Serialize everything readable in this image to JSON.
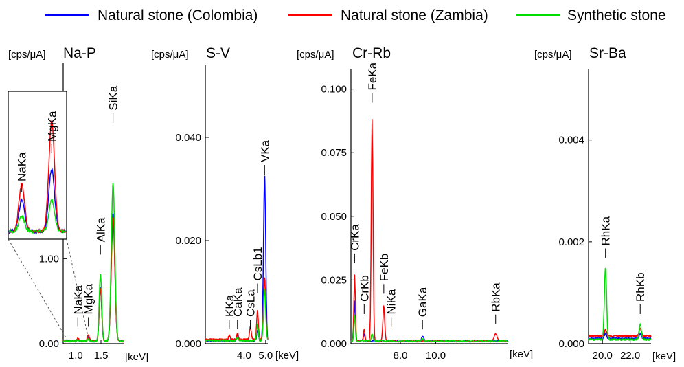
{
  "legend": [
    {
      "label": "Natural stone (Colombia)",
      "color": "#0000ff"
    },
    {
      "label": "Natural stone (Zambia)",
      "color": "#ff0000"
    },
    {
      "label": "Synthetic stone",
      "color": "#00dd00"
    }
  ],
  "chart_data": [
    {
      "type": "line",
      "title": "Na-P",
      "ylabel": "[cps/μA]",
      "xlabel": "[keV]",
      "xlim": [
        0.75,
        1.95
      ],
      "ylim": [
        0,
        3.3
      ],
      "xticks": [
        {
          "v": 1.0,
          "label": "1.0"
        },
        {
          "v": 1.5,
          "label": "1.5"
        }
      ],
      "yticks": [
        {
          "v": 0.0,
          "label": "0.00"
        },
        {
          "v": 1.0,
          "label": "1.00"
        }
      ],
      "peak_labels": [
        {
          "label": "NaKa",
          "x": 1.04,
          "y": 0.15
        },
        {
          "label": "MgKa",
          "x": 1.25,
          "y": 0.15
        },
        {
          "label": "AlKa",
          "x": 1.49,
          "y": 1.0
        },
        {
          "label": "SiKa",
          "x": 1.74,
          "y": 2.55
        }
      ],
      "series": [
        {
          "color": "#0000ff",
          "peaks": [
            [
              1.04,
              0.02,
              0.02
            ],
            [
              1.25,
              0.04,
              0.02
            ],
            [
              1.49,
              0.62,
              0.025
            ],
            [
              1.74,
              1.5,
              0.035
            ]
          ],
          "base": 0.03
        },
        {
          "color": "#ff0000",
          "peaks": [
            [
              1.04,
              0.03,
              0.02
            ],
            [
              1.25,
              0.07,
              0.02
            ],
            [
              1.49,
              0.62,
              0.025
            ],
            [
              1.74,
              1.45,
              0.035
            ]
          ],
          "base": 0.03
        },
        {
          "color": "#00dd00",
          "peaks": [
            [
              1.04,
              0.01,
              0.02
            ],
            [
              1.25,
              0.02,
              0.02
            ],
            [
              1.49,
              0.78,
              0.025
            ],
            [
              1.74,
              1.85,
              0.035
            ]
          ],
          "base": 0.03
        }
      ],
      "inset": {
        "xlim": [
          0.95,
          1.35
        ],
        "ylim": [
          0,
          0.09
        ],
        "labels": [
          {
            "label": "NaKa",
            "x": 1.04
          },
          {
            "label": "MgKa",
            "x": 1.25
          }
        ]
      }
    },
    {
      "type": "line",
      "title": "S-V",
      "ylabel": "[cps/μA]",
      "xlabel": "[keV]",
      "xlim": [
        2.2,
        5.1
      ],
      "ylim": [
        0,
        0.054
      ],
      "xticks": [
        {
          "v": 4.0,
          "label": "4.0"
        },
        {
          "v": 5.0,
          "label": "5.0"
        }
      ],
      "yticks": [
        {
          "v": 0.0,
          "label": "0.000"
        },
        {
          "v": 0.02,
          "label": "0.020"
        },
        {
          "v": 0.04,
          "label": "0.040"
        }
      ],
      "peak_labels": [
        {
          "label": "KKa",
          "x": 3.31,
          "y": 0.002
        },
        {
          "label": "CaKa",
          "x": 3.69,
          "y": 0.002
        },
        {
          "label": "CsLa",
          "x": 4.29,
          "y": 0.002
        },
        {
          "label": "CsLb1",
          "x": 4.62,
          "y": 0.009
        },
        {
          "label": "VKa",
          "x": 4.95,
          "y": 0.032
        }
      ],
      "series": [
        {
          "color": "#0000ff",
          "peaks": [
            [
              4.95,
              0.032,
              0.05
            ],
            [
              4.62,
              0.002,
              0.04
            ],
            [
              3.69,
              0.001,
              0.04
            ]
          ],
          "base": 0.0006
        },
        {
          "color": "#ff0000",
          "peaks": [
            [
              4.95,
              0.012,
              0.05
            ],
            [
              4.62,
              0.0055,
              0.04
            ],
            [
              4.29,
              0.0025,
              0.04
            ],
            [
              3.69,
              0.0012,
              0.04
            ],
            [
              3.31,
              0.0008,
              0.04
            ]
          ],
          "base": 0.0008
        },
        {
          "color": "#00dd00",
          "peaks": [
            [
              4.95,
              0.01,
              0.05
            ],
            [
              4.62,
              0.003,
              0.04
            ],
            [
              3.69,
              0.0006,
              0.04
            ]
          ],
          "base": 0.0006
        }
      ]
    },
    {
      "type": "line",
      "title": "Cr-Rb",
      "ylabel": "[cps/μA]",
      "xlabel": "[keV]",
      "xlim": [
        5.2,
        14.1
      ],
      "ylim": [
        0,
        0.108
      ],
      "xticks": [
        {
          "v": 8.0,
          "label": "8.0"
        },
        {
          "v": 10.0,
          "label": "10.0"
        }
      ],
      "yticks": [
        {
          "v": 0.0,
          "label": "0.000"
        },
        {
          "v": 0.025,
          "label": "0.025"
        },
        {
          "v": 0.05,
          "label": "0.050"
        },
        {
          "v": 0.075,
          "label": "0.075"
        },
        {
          "v": 0.1,
          "label": "0.100"
        }
      ],
      "peak_labels": [
        {
          "label": "CrKa",
          "x": 5.41,
          "y": 0.03
        },
        {
          "label": "CrKb",
          "x": 5.95,
          "y": 0.01
        },
        {
          "label": "FeKa",
          "x": 6.4,
          "y": 0.093
        },
        {
          "label": "FeKb",
          "x": 7.06,
          "y": 0.018
        },
        {
          "label": "NiKa",
          "x": 7.48,
          "y": 0.005
        },
        {
          "label": "GaKa",
          "x": 9.25,
          "y": 0.004
        },
        {
          "label": "RbKa",
          "x": 13.39,
          "y": 0.006
        }
      ],
      "series": [
        {
          "color": "#0000ff",
          "peaks": [
            [
              5.41,
              0.016,
              0.04
            ],
            [
              5.95,
              0.003,
              0.04
            ],
            [
              6.4,
              0.0,
              0.05
            ],
            [
              9.25,
              0.002,
              0.06
            ]
          ],
          "base": 0.001
        },
        {
          "color": "#ff0000",
          "peaks": [
            [
              5.41,
              0.026,
              0.04
            ],
            [
              5.95,
              0.005,
              0.04
            ],
            [
              6.4,
              0.087,
              0.05
            ],
            [
              7.06,
              0.014,
              0.05
            ],
            [
              13.39,
              0.003,
              0.08
            ]
          ],
          "base": 0.001
        },
        {
          "color": "#00dd00",
          "peaks": [
            [
              5.41,
              0.01,
              0.04
            ],
            [
              6.4,
              0.003,
              0.05
            ],
            [
              9.25,
              0.001,
              0.06
            ]
          ],
          "base": 0.001
        }
      ]
    },
    {
      "type": "line",
      "title": "Sr-Ba",
      "ylabel": "[cps/μA]",
      "xlabel": "[keV]",
      "xlim": [
        19.0,
        23.5
      ],
      "ylim": [
        0,
        0.0054
      ],
      "xticks": [
        {
          "v": 20.0,
          "label": "20.0"
        },
        {
          "v": 22.0,
          "label": "22.0"
        }
      ],
      "yticks": [
        {
          "v": 0.0,
          "label": "0.000"
        },
        {
          "v": 0.002,
          "label": "0.002"
        },
        {
          "v": 0.004,
          "label": "0.004"
        }
      ],
      "peak_labels": [
        {
          "label": "RhKa",
          "x": 20.22,
          "y": 0.0016
        },
        {
          "label": "RhKb",
          "x": 22.72,
          "y": 0.0005
        }
      ],
      "series": [
        {
          "color": "#0000ff",
          "peaks": [
            [
              20.22,
              0.0001,
              0.08
            ],
            [
              22.72,
              0.0001,
              0.08
            ]
          ],
          "base": 0.0001
        },
        {
          "color": "#ff0000",
          "peaks": [
            [
              20.22,
              0.00012,
              0.08
            ],
            [
              22.72,
              0.00015,
              0.08
            ]
          ],
          "base": 0.00015
        },
        {
          "color": "#00dd00",
          "peaks": [
            [
              20.22,
              0.0014,
              0.08
            ],
            [
              22.72,
              0.0003,
              0.08
            ]
          ],
          "base": 8e-05
        }
      ]
    }
  ]
}
